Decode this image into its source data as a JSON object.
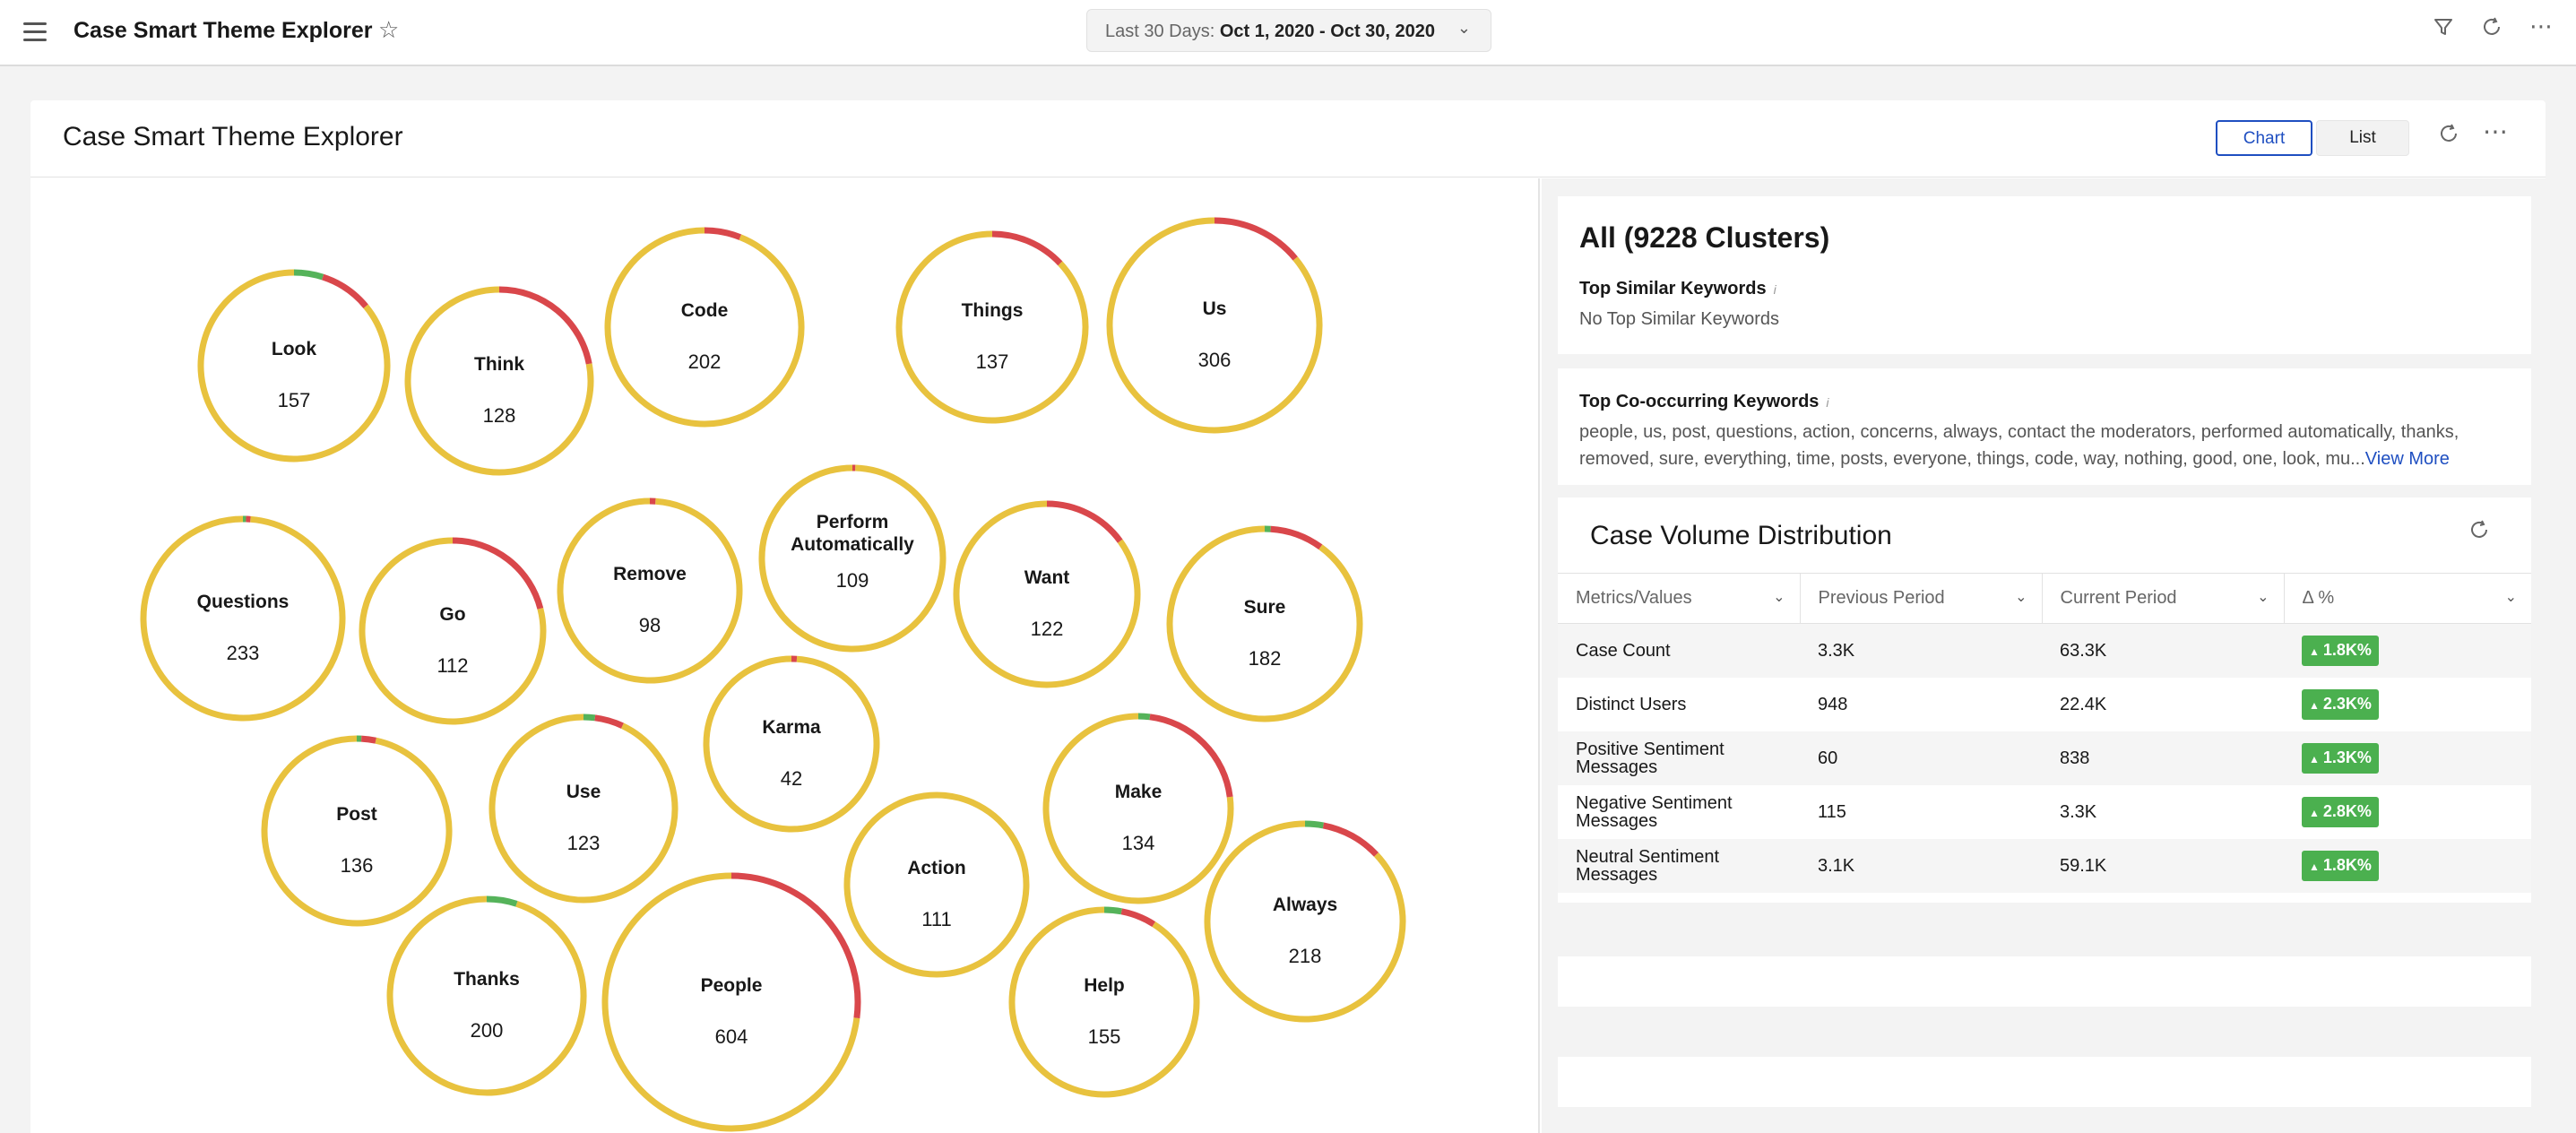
{
  "header": {
    "title": "Case Smart Theme Explorer",
    "date_prefix": "Last 30 Days:",
    "date_range": "Oct 1, 2020 - Oct 30, 2020"
  },
  "card": {
    "title": "Case Smart Theme Explorer",
    "view_chart": "Chart",
    "view_list": "List"
  },
  "summary": {
    "title": "All (9228 Clusters)",
    "similar_label": "Top Similar Keywords",
    "similar_empty": "No Top Similar Keywords",
    "cooccurring_label": "Top Co-occurring Keywords",
    "cooccurring_text": "people, us, post, questions, action, concerns, always, contact the moderators, performed automatically, thanks, removed, sure, everything, time, posts, everyone, things, code, way, nothing, good, one, look, mu...",
    "view_more": "View More"
  },
  "distribution": {
    "title": "Case Volume Distribution",
    "columns": [
      "Metrics/Values",
      "Previous Period",
      "Current Period",
      "Δ %"
    ],
    "rows": [
      {
        "metric": "Case Count",
        "previous": "3.3K",
        "current": "63.3K",
        "delta": "1.8K%"
      },
      {
        "metric": "Distinct Users",
        "previous": "948",
        "current": "22.4K",
        "delta": "2.3K%"
      },
      {
        "metric": "Positive Sentiment Messages",
        "previous": "60",
        "current": "838",
        "delta": "1.3K%"
      },
      {
        "metric": "Negative Sentiment Messages",
        "previous": "115",
        "current": "3.3K",
        "delta": "2.8K%"
      },
      {
        "metric": "Neutral Sentiment Messages",
        "previous": "3.1K",
        "current": "59.1K",
        "delta": "1.8K%"
      }
    ]
  },
  "colors": {
    "neutral": "#e8c23e",
    "negative": "#d9474b",
    "positive": "#55b35a",
    "accent": "#1f4fc1"
  },
  "icons": [
    "menu-icon",
    "star-icon",
    "chevron-down-icon",
    "filter-icon",
    "refresh-icon",
    "more-icon",
    "info-icon"
  ],
  "bubbles": [
    {
      "label": "Look",
      "value": 157,
      "positive": 0.05,
      "negative": 0.09
    },
    {
      "label": "Think",
      "value": 128,
      "positive": 0,
      "negative": 0.22
    },
    {
      "label": "Code",
      "value": 202,
      "positive": 0,
      "negative": 0.06
    },
    {
      "label": "Things",
      "value": 137,
      "positive": 0,
      "negative": 0.13
    },
    {
      "label": "Us",
      "value": 306,
      "positive": 0,
      "negative": 0.14
    },
    {
      "label": "Questions",
      "value": 233,
      "positive": 0.005,
      "negative": 0.007
    },
    {
      "label": "Go",
      "value": 112,
      "positive": 0,
      "negative": 0.21
    },
    {
      "label": "Remove",
      "value": 98,
      "positive": 0,
      "negative": 0.01
    },
    {
      "label": "Perform Automatically",
      "value": 109,
      "positive": 0,
      "negative": 0.005
    },
    {
      "label": "Want",
      "value": 122,
      "positive": 0,
      "negative": 0.15
    },
    {
      "label": "Sure",
      "value": 182,
      "positive": 0.01,
      "negative": 0.09
    },
    {
      "label": "Karma",
      "value": 42,
      "positive": 0,
      "negative": 0.01
    },
    {
      "label": "Post",
      "value": 136,
      "positive": 0.008,
      "negative": 0.025
    },
    {
      "label": "Use",
      "value": 123,
      "positive": 0.02,
      "negative": 0.05
    },
    {
      "label": "Make",
      "value": 134,
      "positive": 0.02,
      "negative": 0.21
    },
    {
      "label": "Action",
      "value": 111,
      "positive": 0,
      "negative": 0
    },
    {
      "label": "Always",
      "value": 218,
      "positive": 0.03,
      "negative": 0.1
    },
    {
      "label": "Thanks",
      "value": 200,
      "positive": 0.05,
      "negative": 0
    },
    {
      "label": "People",
      "value": 604,
      "positive": 0,
      "negative": 0.27
    },
    {
      "label": "Help",
      "value": 155,
      "positive": 0.03,
      "negative": 0.06
    }
  ]
}
